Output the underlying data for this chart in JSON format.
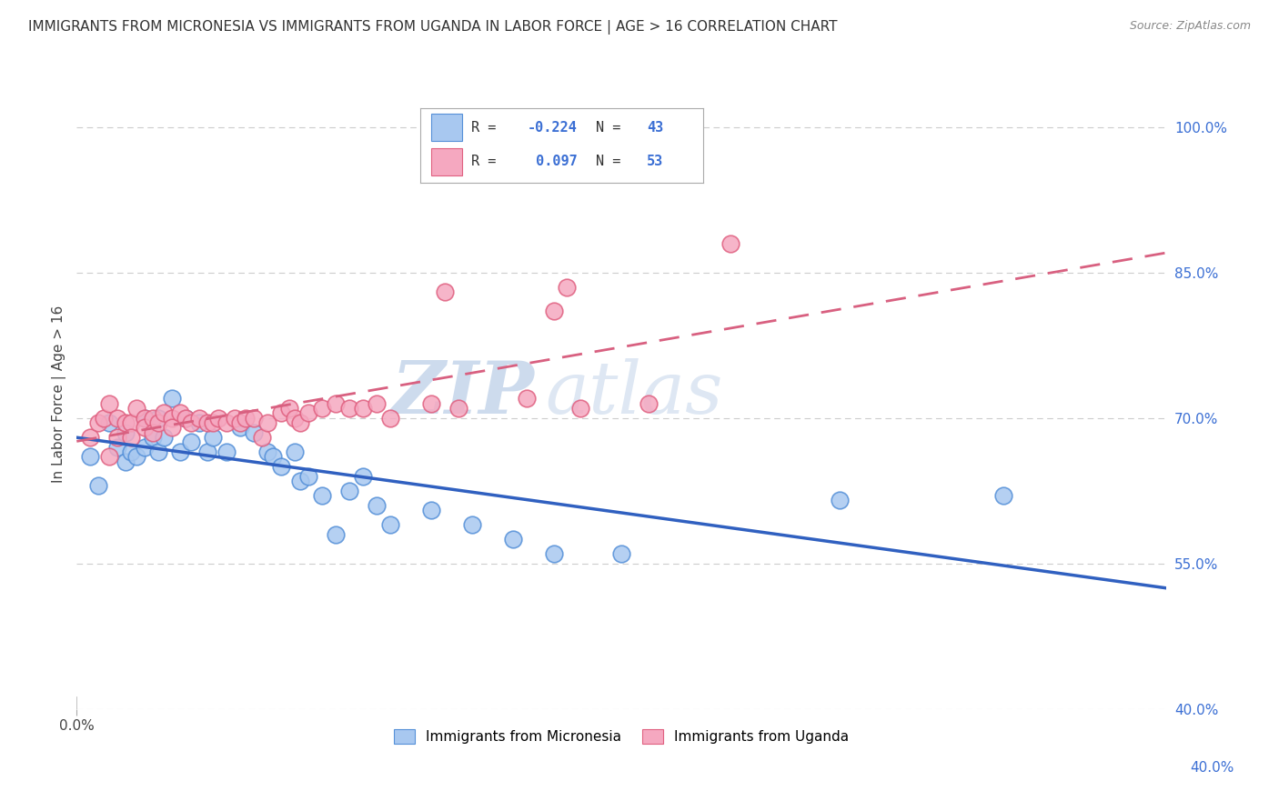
{
  "title": "IMMIGRANTS FROM MICRONESIA VS IMMIGRANTS FROM UGANDA IN LABOR FORCE | AGE > 16 CORRELATION CHART",
  "source": "Source: ZipAtlas.com",
  "ylabel": "In Labor Force | Age > 16",
  "xlim": [
    0.0,
    0.4
  ],
  "ylim": [
    0.4,
    1.05
  ],
  "right_yticks": [
    1.0,
    0.85,
    0.7,
    0.55,
    0.4
  ],
  "right_yticklabels": [
    "100.0%",
    "85.0%",
    "70.0%",
    "55.0%",
    "40.0%"
  ],
  "blue_color": "#A8C8F0",
  "pink_color": "#F5A8C0",
  "blue_edge_color": "#5590D8",
  "pink_edge_color": "#E06080",
  "blue_line_color": "#3060C0",
  "pink_line_color": "#D86080",
  "watermark_zip": "ZIP",
  "watermark_atlas": "atlas",
  "micronesia_x": [
    0.005,
    0.008,
    0.012,
    0.015,
    0.018,
    0.018,
    0.02,
    0.022,
    0.025,
    0.025,
    0.028,
    0.03,
    0.03,
    0.032,
    0.035,
    0.038,
    0.04,
    0.042,
    0.045,
    0.048,
    0.05,
    0.055,
    0.06,
    0.065,
    0.07,
    0.072,
    0.075,
    0.08,
    0.082,
    0.085,
    0.09,
    0.095,
    0.1,
    0.105,
    0.11,
    0.115,
    0.13,
    0.145,
    0.16,
    0.175,
    0.2,
    0.28,
    0.34
  ],
  "micronesia_y": [
    0.66,
    0.63,
    0.695,
    0.67,
    0.685,
    0.655,
    0.665,
    0.66,
    0.7,
    0.67,
    0.68,
    0.7,
    0.665,
    0.68,
    0.72,
    0.665,
    0.7,
    0.675,
    0.695,
    0.665,
    0.68,
    0.665,
    0.69,
    0.685,
    0.665,
    0.66,
    0.65,
    0.665,
    0.635,
    0.64,
    0.62,
    0.58,
    0.625,
    0.64,
    0.61,
    0.59,
    0.605,
    0.59,
    0.575,
    0.56,
    0.56,
    0.615,
    0.62
  ],
  "uganda_x": [
    0.005,
    0.008,
    0.01,
    0.012,
    0.012,
    0.015,
    0.015,
    0.018,
    0.02,
    0.02,
    0.022,
    0.025,
    0.025,
    0.028,
    0.028,
    0.03,
    0.032,
    0.035,
    0.035,
    0.038,
    0.04,
    0.042,
    0.045,
    0.048,
    0.05,
    0.052,
    0.055,
    0.058,
    0.06,
    0.062,
    0.065,
    0.068,
    0.07,
    0.075,
    0.078,
    0.08,
    0.082,
    0.085,
    0.09,
    0.095,
    0.1,
    0.105,
    0.11,
    0.115,
    0.13,
    0.135,
    0.14,
    0.165,
    0.175,
    0.18,
    0.185,
    0.21,
    0.24
  ],
  "uganda_y": [
    0.68,
    0.695,
    0.7,
    0.715,
    0.66,
    0.7,
    0.68,
    0.695,
    0.695,
    0.68,
    0.71,
    0.7,
    0.69,
    0.7,
    0.685,
    0.695,
    0.705,
    0.7,
    0.69,
    0.705,
    0.7,
    0.695,
    0.7,
    0.695,
    0.695,
    0.7,
    0.695,
    0.7,
    0.695,
    0.7,
    0.7,
    0.68,
    0.695,
    0.705,
    0.71,
    0.7,
    0.695,
    0.705,
    0.71,
    0.715,
    0.71,
    0.71,
    0.715,
    0.7,
    0.715,
    0.83,
    0.71,
    0.72,
    0.81,
    0.835,
    0.71,
    0.715,
    0.88
  ]
}
